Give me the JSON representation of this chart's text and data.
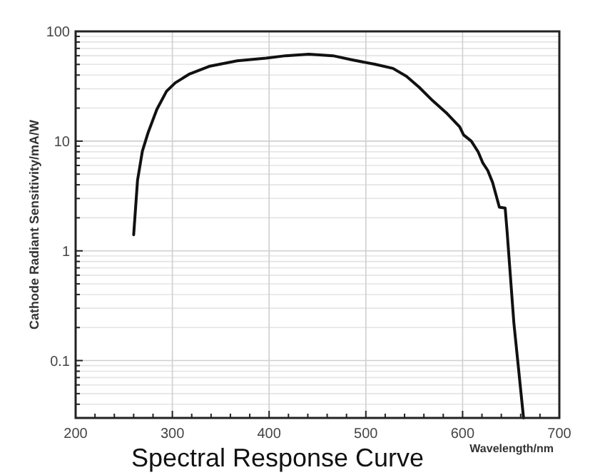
{
  "chart_data": {
    "type": "line",
    "title": "Spectral Response Curve",
    "xlabel": "Wavelength/nm",
    "ylabel": "Cathode Radiant Sensitivity/mA/W",
    "log": "y",
    "grid": true,
    "marker": "none",
    "line_style": "solid",
    "xlim": [
      200,
      700
    ],
    "ylim": [
      0.03,
      100
    ],
    "xticks": [
      200,
      {
        "value": 220,
        "label": null
      },
      {
        "value": 240,
        "label": null
      },
      {
        "value": 260,
        "label": null
      },
      {
        "value": 280,
        "label": null
      },
      300,
      {
        "value": 320,
        "label": null
      },
      {
        "value": 340,
        "label": null
      },
      {
        "value": 360,
        "label": null
      },
      {
        "value": 380,
        "label": null
      },
      400,
      {
        "value": 420,
        "label": null
      },
      {
        "value": 440,
        "label": null
      },
      {
        "value": 460,
        "label": null
      },
      {
        "value": 480,
        "label": null
      },
      500,
      {
        "value": 520,
        "label": null
      },
      {
        "value": 540,
        "label": null
      },
      {
        "value": 560,
        "label": null
      },
      {
        "value": 580,
        "label": null
      },
      600,
      {
        "value": 620,
        "label": null
      },
      {
        "value": 640,
        "label": null
      },
      {
        "value": 660,
        "label": null
      },
      {
        "value": 680,
        "label": null
      },
      700
    ],
    "yticks": [
      {
        "value": 0.04,
        "label": null
      },
      {
        "value": 0.05,
        "label": null
      },
      {
        "value": 0.06,
        "label": null
      },
      {
        "value": 0.07,
        "label": null
      },
      {
        "value": 0.08,
        "label": null
      },
      {
        "value": 0.09,
        "label": null
      },
      0.1,
      {
        "value": 0.2,
        "label": null
      },
      {
        "value": 0.3,
        "label": null
      },
      {
        "value": 0.4,
        "label": null
      },
      {
        "value": 0.5,
        "label": null
      },
      {
        "value": 0.6,
        "label": null
      },
      {
        "value": 0.7,
        "label": null
      },
      {
        "value": 0.8,
        "label": null
      },
      {
        "value": 0.9,
        "label": null
      },
      1,
      {
        "value": 2,
        "label": null
      },
      {
        "value": 3,
        "label": null
      },
      {
        "value": 4,
        "label": null
      },
      {
        "value": 5,
        "label": null
      },
      {
        "value": 6,
        "label": null
      },
      {
        "value": 7,
        "label": null
      },
      {
        "value": 8,
        "label": null
      },
      {
        "value": 9,
        "label": null
      },
      10,
      {
        "value": 20,
        "label": null
      },
      {
        "value": 30,
        "label": null
      },
      {
        "value": 40,
        "label": null
      },
      {
        "value": 50,
        "label": null
      },
      {
        "value": 60,
        "label": null
      },
      {
        "value": 70,
        "label": null
      },
      {
        "value": 80,
        "label": null
      },
      {
        "value": 90,
        "label": null
      },
      100
    ],
    "x": [
      260,
      264,
      269,
      275,
      284,
      294,
      303,
      318,
      338,
      367,
      397,
      417,
      441,
      466,
      486,
      510,
      528,
      542,
      555,
      569,
      584,
      597,
      601,
      609,
      616,
      621,
      626,
      631,
      638,
      644,
      646,
      653,
      663
    ],
    "series": [
      {
        "color": "#111111",
        "values": [
          1.4,
          4.4,
          8.1,
          12,
          19.5,
          28.5,
          34,
          41,
          48,
          54,
          57,
          60,
          62,
          60,
          55,
          50,
          46,
          39,
          31,
          23.4,
          17.8,
          13.5,
          11.4,
          10,
          8,
          6.3,
          5.4,
          4.2,
          2.5,
          2.45,
          1.5,
          0.22,
          0.03
        ]
      }
    ]
  }
}
